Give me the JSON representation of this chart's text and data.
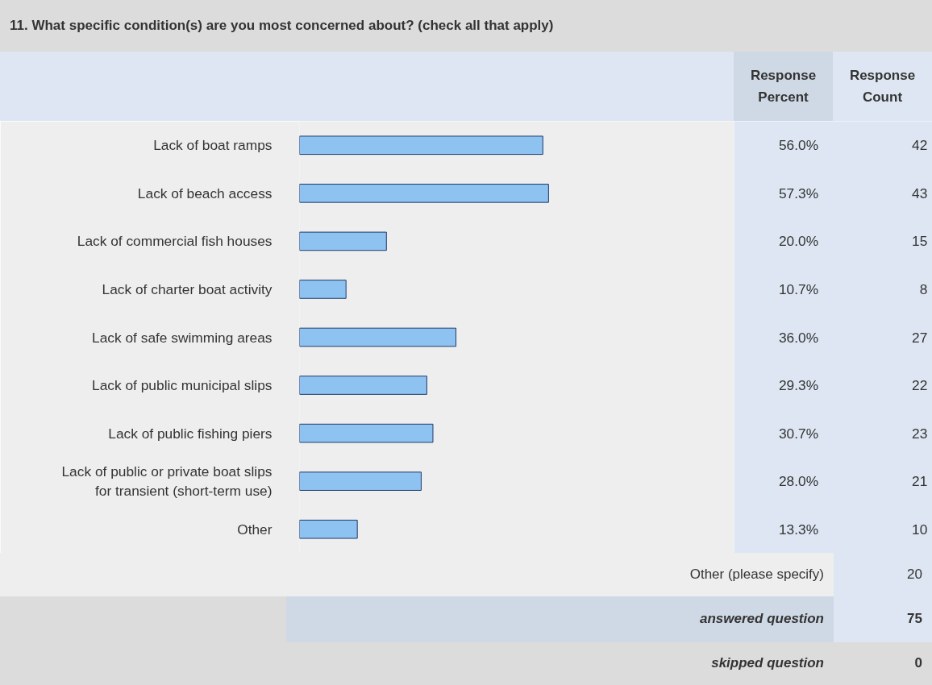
{
  "chart_data": {
    "type": "bar",
    "orientation": "horizontal",
    "title": "11. What specific condition(s) are you most concerned about? (check all that apply)",
    "categories": [
      "Lack of boat ramps",
      "Lack of beach access",
      "Lack of commercial fish houses",
      "Lack of charter boat activity",
      "Lack of safe swimming areas",
      "Lack of public municipal slips",
      "Lack of public fishing piers",
      "Lack of public or private boat slips\nfor transient (short-term use)",
      "Other"
    ],
    "values": [
      56.0,
      57.3,
      20.0,
      10.7,
      36.0,
      29.3,
      30.7,
      28.0,
      13.3
    ],
    "value_labels": [
      "56.0%",
      "57.3%",
      "20.0%",
      "10.7%",
      "36.0%",
      "29.3%",
      "30.7%",
      "28.0%",
      "13.3%"
    ],
    "color": "#8ec2f0",
    "xlim": [
      0,
      100
    ],
    "tick_labels": "y",
    "annotations": [
      "42",
      "43",
      "15",
      "8",
      "27",
      "22",
      "23",
      "21",
      "10",
      "Response Percent",
      "Response Count",
      "Other (please specify)",
      "20",
      "answered question",
      "75",
      "skipped question",
      "0"
    ]
  }
}
